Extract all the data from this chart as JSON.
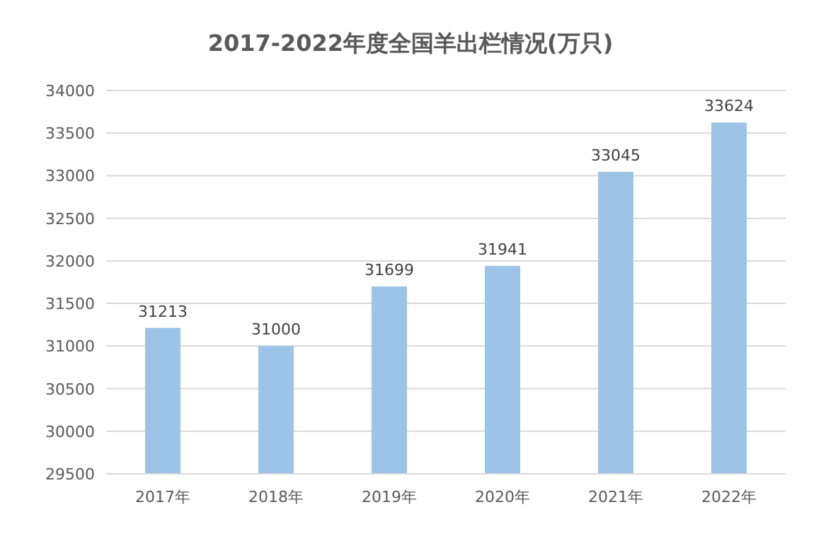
{
  "chart_data": {
    "type": "bar",
    "title": "2017-2022年度全国羊出栏情况(万只)",
    "categories": [
      "2017年",
      "2018年",
      "2019年",
      "2020年",
      "2021年",
      "2022年"
    ],
    "values": [
      31213,
      31000,
      31699,
      31941,
      33045,
      33624
    ],
    "color": "#9dc3e6",
    "data_labels": true,
    "grid": "y",
    "ylim": [
      29500,
      34000
    ],
    "yticks": [
      29500,
      30000,
      30500,
      31000,
      31500,
      32000,
      32500,
      33000,
      33500,
      34000
    ]
  }
}
